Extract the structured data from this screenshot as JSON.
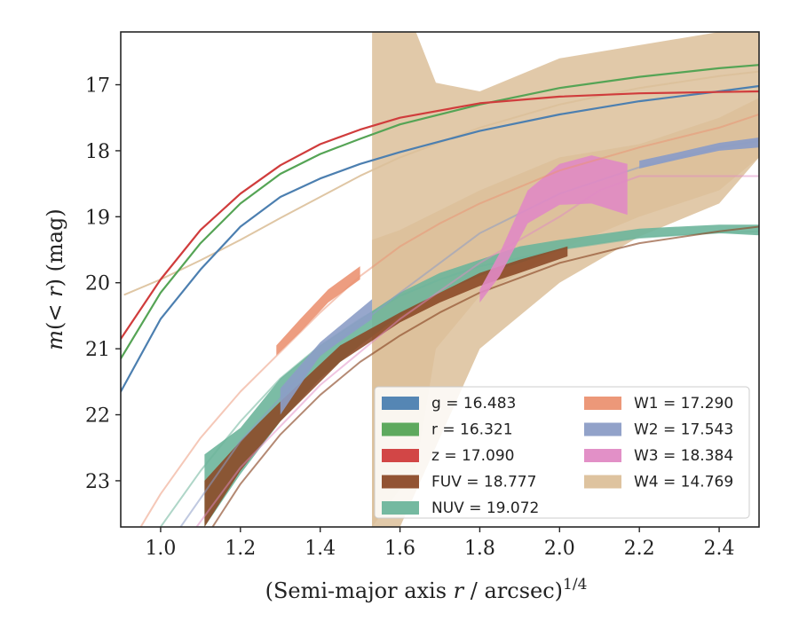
{
  "chart_data": {
    "type": "line",
    "xlabel": "(Semi-major axis r / arcsec)^1/4",
    "xlabel_parts": {
      "main": "(Semi-major axis ",
      "var": "r",
      "rest": " / arcsec)",
      "sup": "1/4"
    },
    "ylabel": "m(< r) (mag)",
    "ylabel_parts": {
      "var": "m",
      "mid": "(< ",
      "var2": "r",
      "rest": ") (mag)"
    },
    "xlim": [
      0.9,
      2.5
    ],
    "ylim": [
      23.7,
      16.2
    ],
    "y_inverted": true,
    "xticks": [
      "1.0",
      "1.2",
      "1.4",
      "1.6",
      "1.8",
      "2.0",
      "2.2",
      "2.4"
    ],
    "xtick_values": [
      1.0,
      1.2,
      1.4,
      1.6,
      1.8,
      2.0,
      2.2,
      2.4
    ],
    "yticks": [
      "17",
      "18",
      "19",
      "20",
      "21",
      "22",
      "23"
    ],
    "ytick_values": [
      17,
      18,
      19,
      20,
      21,
      22,
      23
    ],
    "grid": false,
    "legend_position": "lower-right",
    "legend": [
      {
        "band": "g",
        "label": "g = 16.483",
        "color": "#4c7fb0"
      },
      {
        "band": "r",
        "label": "r = 16.321",
        "color": "#55a455"
      },
      {
        "band": "z",
        "label": "z = 17.090",
        "color": "#d03c3c"
      },
      {
        "band": "FUV",
        "label": "FUV = 18.777",
        "color": "#8c4a28"
      },
      {
        "band": "NUV",
        "label": "NUV = 19.072",
        "color": "#6db59b"
      },
      {
        "band": "W1",
        "label": "W1 = 17.290",
        "color": "#eb9272"
      },
      {
        "band": "W2",
        "label": "W2 = 17.543",
        "color": "#8c9dc6"
      },
      {
        "band": "W3",
        "label": "W3 = 18.384",
        "color": "#e08ac4"
      },
      {
        "band": "W4",
        "label": "W4 = 14.769",
        "color": "#dcc09a"
      }
    ],
    "series": [
      {
        "name": "W4",
        "kind": "band",
        "color": "#dcc09a",
        "opacity": 0.85,
        "x": [
          1.53,
          1.53,
          1.64,
          1.69,
          1.8,
          2.0,
          2.2,
          2.4,
          2.5
        ],
        "y_low": [
          23.7,
          23.7,
          22.8,
          21.0,
          20.2,
          19.5,
          19.0,
          18.6,
          18.1
        ],
        "y_high": [
          16.2,
          16.2,
          16.2,
          16.97,
          17.1,
          16.6,
          16.4,
          16.2,
          16.2
        ]
      },
      {
        "name": "W4",
        "kind": "band",
        "color": "#dcc09a",
        "opacity": 0.85,
        "x": [
          1.53,
          1.6,
          1.8,
          2.0,
          2.2,
          2.4,
          2.5
        ],
        "y_low": [
          23.7,
          23.7,
          21.0,
          20.0,
          19.3,
          18.8,
          18.1
        ],
        "y_high": [
          19.35,
          19.2,
          18.6,
          18.1,
          17.9,
          17.5,
          17.2
        ]
      },
      {
        "name": "W4",
        "kind": "line",
        "color": "#dcc09a",
        "opacity": 0.9,
        "x": [
          0.91,
          1.0,
          1.1,
          1.2,
          1.3,
          1.4,
          1.5,
          1.6,
          1.8,
          2.0,
          2.2,
          2.4,
          2.5
        ],
        "y": [
          20.18,
          19.95,
          19.66,
          19.35,
          19.02,
          18.7,
          18.38,
          18.1,
          17.65,
          17.3,
          17.05,
          16.87,
          16.8
        ]
      },
      {
        "name": "NUV",
        "kind": "band",
        "color": "#6db59b",
        "opacity": 0.9,
        "x": [
          1.11,
          1.2,
          1.3,
          1.4,
          1.5,
          1.6,
          1.7,
          1.8,
          1.9,
          2.0,
          2.2,
          2.4,
          2.5
        ],
        "y_low": [
          23.7,
          22.9,
          22.1,
          21.45,
          20.95,
          20.5,
          20.15,
          19.9,
          19.7,
          19.5,
          19.32,
          19.25,
          19.28
        ],
        "y_high": [
          22.6,
          22.2,
          21.45,
          20.95,
          20.55,
          20.15,
          19.85,
          19.65,
          19.45,
          19.35,
          19.18,
          19.12,
          19.12
        ]
      },
      {
        "name": "NUV",
        "kind": "line",
        "color": "#6db59b",
        "opacity": 0.55,
        "x": [
          1.0,
          1.1,
          1.2,
          1.3,
          1.4,
          1.5,
          1.6,
          1.7,
          1.8,
          2.0,
          2.2,
          2.4,
          2.5
        ],
        "y": [
          23.7,
          22.85,
          22.1,
          21.45,
          20.95,
          20.55,
          20.2,
          19.95,
          19.75,
          19.5,
          19.32,
          19.24,
          19.22
        ]
      },
      {
        "name": "FUV",
        "kind": "band",
        "color": "#8c4a28",
        "opacity": 0.9,
        "x": [
          1.11,
          1.2,
          1.3,
          1.45,
          1.6,
          1.7,
          1.8,
          1.9,
          2.02
        ],
        "y_low": [
          23.7,
          22.85,
          22.1,
          21.2,
          20.6,
          20.3,
          20.05,
          19.85,
          19.6
        ],
        "y_high": [
          23.0,
          22.4,
          21.8,
          20.95,
          20.45,
          20.15,
          19.85,
          19.65,
          19.45
        ]
      },
      {
        "name": "FUV",
        "kind": "line",
        "color": "#8c4a28",
        "opacity": 0.65,
        "x": [
          1.13,
          1.2,
          1.3,
          1.4,
          1.5,
          1.6,
          1.7,
          1.8,
          2.0,
          2.2,
          2.4,
          2.5
        ],
        "y": [
          23.7,
          23.05,
          22.3,
          21.7,
          21.2,
          20.8,
          20.45,
          20.15,
          19.7,
          19.4,
          19.22,
          19.15
        ]
      },
      {
        "name": "W2",
        "kind": "line",
        "color": "#8c9dc6",
        "opacity": 0.55,
        "x": [
          1.05,
          1.2,
          1.4,
          1.6,
          1.8,
          2.0,
          2.2,
          2.4,
          2.5
        ],
        "y": [
          23.7,
          22.4,
          21.1,
          20.15,
          19.25,
          18.65,
          18.25,
          17.95,
          17.85
        ]
      },
      {
        "name": "W2",
        "kind": "band",
        "color": "#8c9dc6",
        "opacity": 0.9,
        "x": [
          1.3,
          1.4,
          1.53
        ],
        "y_low": [
          22.0,
          21.1,
          20.55
        ],
        "y_high": [
          21.6,
          20.9,
          20.25
        ]
      },
      {
        "name": "W2",
        "kind": "band",
        "color": "#8c9dc6",
        "opacity": 0.95,
        "x": [
          2.2,
          2.3,
          2.4,
          2.5
        ],
        "y_low": [
          18.27,
          18.13,
          18.0,
          17.95
        ],
        "y_high": [
          18.15,
          18.02,
          17.88,
          17.8
        ]
      },
      {
        "name": "W3",
        "kind": "line",
        "color": "#e08ac4",
        "opacity": 0.5,
        "x": [
          1.09,
          1.2,
          1.4,
          1.6,
          1.8,
          2.0,
          2.1,
          2.2,
          2.5
        ],
        "y": [
          23.7,
          22.8,
          21.55,
          20.55,
          19.7,
          19.0,
          18.6,
          18.384,
          18.384
        ]
      },
      {
        "name": "W3",
        "kind": "band",
        "color": "#e08ac4",
        "opacity": 0.9,
        "x": [
          1.8,
          1.85,
          1.92,
          2.0,
          2.08,
          2.17
        ],
        "y_low": [
          20.3,
          19.9,
          19.1,
          18.82,
          18.8,
          18.97
        ],
        "y_high": [
          20.1,
          19.55,
          18.6,
          18.2,
          18.07,
          18.2
        ]
      },
      {
        "name": "W1",
        "kind": "line",
        "color": "#eb9272",
        "opacity": 0.5,
        "x": [
          0.95,
          1.0,
          1.1,
          1.2,
          1.3,
          1.4,
          1.5,
          1.6,
          1.7,
          1.8,
          2.0,
          2.2,
          2.4,
          2.5
        ],
        "y": [
          23.7,
          23.2,
          22.35,
          21.65,
          21.05,
          20.45,
          19.9,
          19.45,
          19.1,
          18.8,
          18.3,
          17.95,
          17.65,
          17.45
        ]
      },
      {
        "name": "W1",
        "kind": "band",
        "color": "#eb9272",
        "opacity": 0.9,
        "x": [
          1.29,
          1.35,
          1.42,
          1.5
        ],
        "y_low": [
          21.1,
          20.75,
          20.3,
          19.95
        ],
        "y_high": [
          20.95,
          20.55,
          20.1,
          19.75
        ]
      },
      {
        "name": "g",
        "kind": "line",
        "color": "#4c7fb0",
        "opacity": 1,
        "x": [
          0.9,
          1.0,
          1.1,
          1.2,
          1.3,
          1.4,
          1.5,
          1.6,
          1.8,
          2.0,
          2.2,
          2.4,
          2.5
        ],
        "y": [
          21.65,
          20.55,
          19.8,
          19.15,
          18.7,
          18.42,
          18.2,
          18.02,
          17.7,
          17.45,
          17.25,
          17.1,
          17.02
        ]
      },
      {
        "name": "r",
        "kind": "line",
        "color": "#55a455",
        "opacity": 1,
        "x": [
          0.9,
          1.0,
          1.1,
          1.2,
          1.3,
          1.4,
          1.5,
          1.6,
          1.8,
          2.0,
          2.2,
          2.4,
          2.5
        ],
        "y": [
          21.15,
          20.15,
          19.4,
          18.8,
          18.35,
          18.05,
          17.82,
          17.6,
          17.3,
          17.05,
          16.88,
          16.75,
          16.7
        ]
      },
      {
        "name": "z",
        "kind": "line",
        "color": "#d03c3c",
        "opacity": 1,
        "x": [
          0.9,
          1.0,
          1.1,
          1.2,
          1.3,
          1.4,
          1.5,
          1.6,
          1.8,
          2.0,
          2.2,
          2.4,
          2.5
        ],
        "y": [
          20.85,
          19.95,
          19.2,
          18.65,
          18.22,
          17.9,
          17.68,
          17.5,
          17.28,
          17.18,
          17.13,
          17.11,
          17.1
        ]
      }
    ]
  }
}
